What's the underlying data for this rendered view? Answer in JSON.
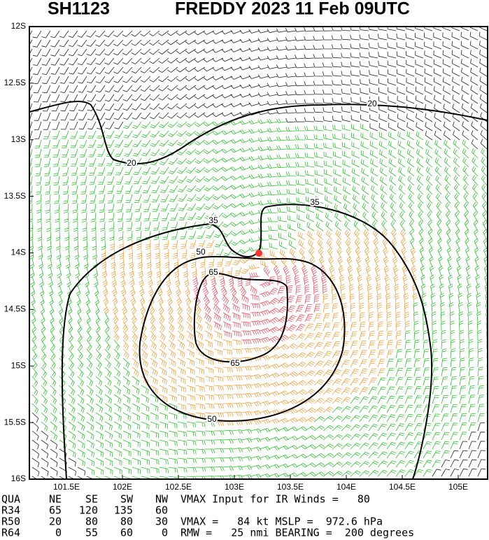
{
  "header": {
    "storm_id": "SH1123",
    "title": "FREDDY 2023 11 Feb 09UTC"
  },
  "lat_labels": [
    "12S",
    "12.5S",
    "13S",
    "13.5S",
    "14S",
    "14.5S",
    "15S",
    "15.5S",
    "16S"
  ],
  "lon_labels": [
    "101.5E",
    "102E",
    "102.5E",
    "103E",
    "103.5E",
    "104E",
    "104.5E",
    "105E"
  ],
  "contour_labels": [
    "20",
    "20",
    "35",
    "35",
    "50",
    "50",
    "65",
    "65"
  ],
  "table": {
    "rows": [
      [
        "QUA",
        "NE",
        "SE",
        "SW",
        "NW"
      ],
      [
        "R34",
        "65",
        "120",
        "135",
        "60"
      ],
      [
        "R50",
        "20",
        "80",
        "80",
        "30"
      ],
      [
        "R64",
        "0",
        "55",
        "60",
        "0"
      ]
    ]
  },
  "info": [
    "VMAX Input for IR Winds =   80",
    "VMAX =   84 kt MSLP =  972.6 hPa",
    "RMW =   25 nmi BEARING =  200 degrees"
  ]
}
